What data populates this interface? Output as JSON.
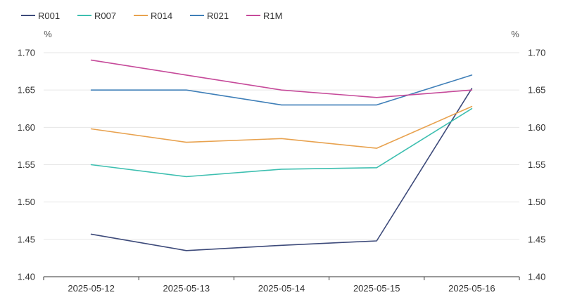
{
  "chart_data": {
    "type": "line",
    "categories": [
      "2025-05-12",
      "2025-05-13",
      "2025-05-14",
      "2025-05-15",
      "2025-05-16"
    ],
    "series": [
      {
        "name": "R001",
        "color": "#3d4a7a",
        "values": [
          1.457,
          1.435,
          1.442,
          1.448,
          1.652
        ]
      },
      {
        "name": "R007",
        "color": "#3dbfb0",
        "values": [
          1.55,
          1.534,
          1.544,
          1.546,
          1.625
        ]
      },
      {
        "name": "R014",
        "color": "#e8a24f",
        "values": [
          1.598,
          1.58,
          1.585,
          1.572,
          1.628
        ]
      },
      {
        "name": "R021",
        "color": "#3f7fb8",
        "values": [
          1.65,
          1.65,
          1.63,
          1.63,
          1.67
        ]
      },
      {
        "name": "R1M",
        "color": "#c64a9a",
        "values": [
          1.69,
          1.67,
          1.65,
          1.64,
          1.65
        ]
      }
    ],
    "y_ticks": [
      "1.70",
      "1.65",
      "1.60",
      "1.55",
      "1.50",
      "1.45",
      "1.40"
    ],
    "ylim": [
      1.4,
      1.7
    ],
    "left_unit": "%",
    "right_unit": "%",
    "grid": true,
    "legend_position": "top-left"
  }
}
